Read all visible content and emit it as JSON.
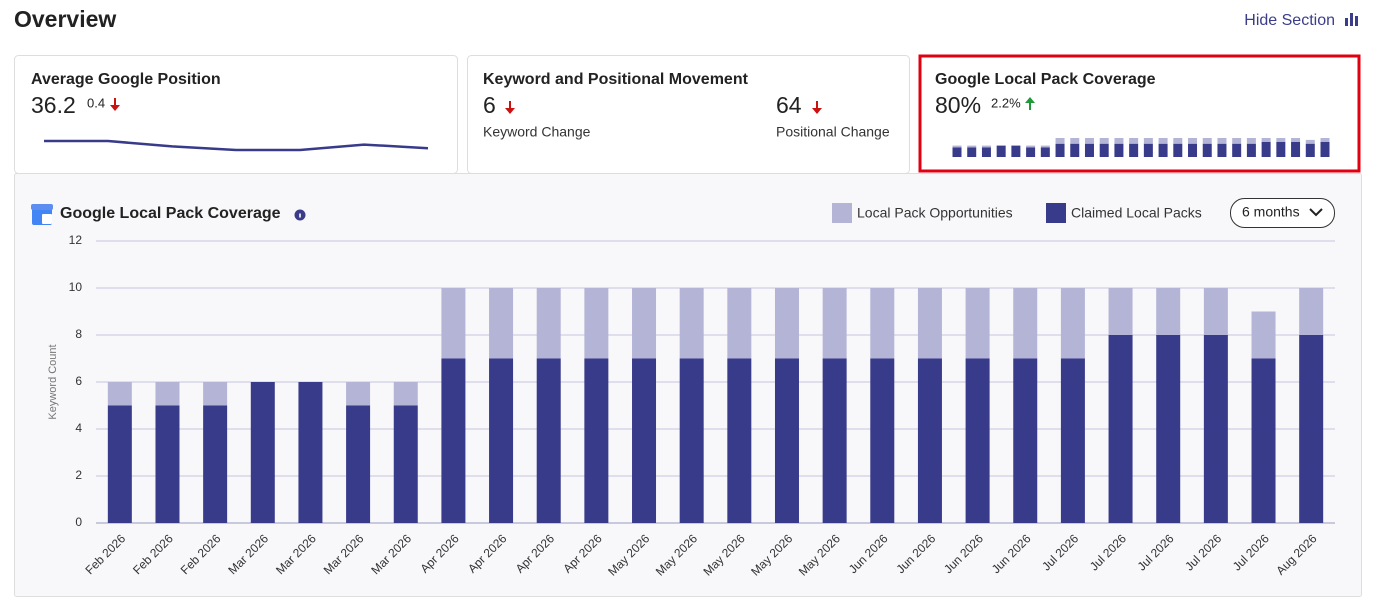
{
  "header": {
    "title": "Overview",
    "action": "Hide Section"
  },
  "cards": [
    {
      "title": "Average Google Position",
      "value": "36.2",
      "change": "0.4",
      "trend": "down",
      "sparkline": [
        35.8,
        35.8,
        36.1,
        36.3,
        36.3,
        36.0,
        36.2
      ]
    },
    {
      "title": "Keyword and Positional Movement",
      "metrics": [
        {
          "value": "6",
          "trend": "down",
          "label": "Keyword Change"
        },
        {
          "value": "64",
          "trend": "down",
          "label": "Positional Change"
        }
      ]
    },
    {
      "title": "Google Local Pack Coverage",
      "value": "80%",
      "change": "2.2%",
      "trend": "up",
      "highlighted": true
    }
  ],
  "chart_data": {
    "type": "stacked_bar",
    "title": "Google Local Pack Coverage",
    "period": "6 months",
    "y_label": "Keyword Count",
    "categories": [
      "Feb 2026",
      "Feb 2026",
      "Feb 2026",
      "Mar 2026",
      "Mar 2026",
      "Mar 2026",
      "Mar 2026",
      "Apr 2026",
      "Apr 2026",
      "Apr 2026",
      "Apr 2026",
      "May 2026",
      "May 2026",
      "May 2026",
      "May 2026",
      "May 2026",
      "Jun 2026",
      "Jun 2026",
      "Jun 2026",
      "Jun 2026",
      "Jul 2026",
      "Jul 2026",
      "Jul 2026",
      "Jul 2026",
      "Jul 2026",
      "Aug 2026"
    ],
    "series": [
      {
        "name": "Local Pack Opportunities",
        "color": "#b4b4d6",
        "values": [
          1,
          1,
          1,
          0,
          0,
          1,
          1,
          3,
          3,
          3,
          3,
          3,
          3,
          3,
          3,
          3,
          3,
          3,
          3,
          3,
          3,
          2,
          2,
          2,
          2,
          2
        ]
      },
      {
        "name": "Claimed Local Packs",
        "color": "#383a8a",
        "values": [
          5,
          5,
          5,
          6,
          6,
          5,
          5,
          7,
          7,
          7,
          7,
          7,
          7,
          7,
          7,
          7,
          7,
          7,
          7,
          7,
          7,
          8,
          8,
          8,
          7,
          8
        ]
      }
    ],
    "ylim": [
      0,
      12
    ],
    "yticks": [
      0,
      2,
      4,
      6,
      8,
      10,
      12
    ],
    "grid": true
  }
}
